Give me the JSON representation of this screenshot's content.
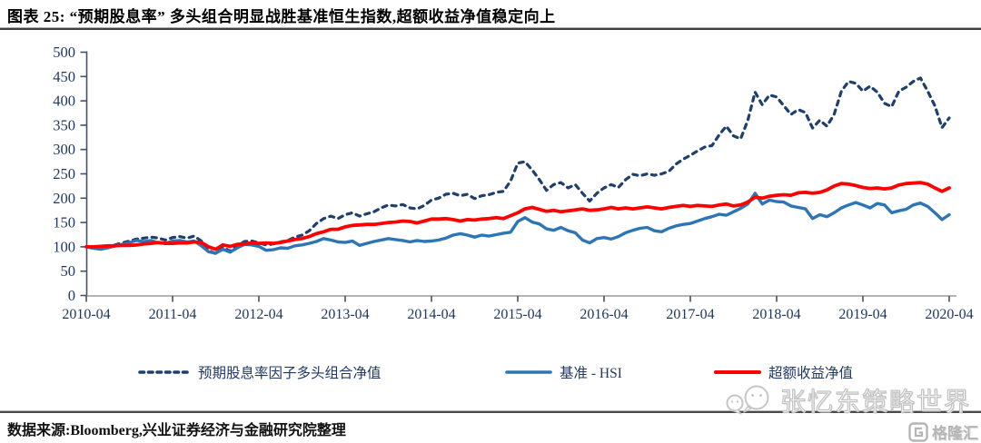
{
  "header": {
    "title": "图表 25: “预期股息率” 多头组合明显战胜基准恒生指数,超额收益净值稳定向上"
  },
  "footer": {
    "source": "数据来源:Bloomberg,兴业证券经济与金融研究院整理"
  },
  "watermark": {
    "text": "张忆东策略世界",
    "logo_text": "格隆汇"
  },
  "colors": {
    "long_portfolio": "#1f3f6e",
    "benchmark_hsi": "#2e75b6",
    "excess_return": "#ff0000",
    "axis_label": "#1f3864",
    "x_axis_line": "#9b9b9b",
    "y_axis_line": "#44516b"
  },
  "chart_data": {
    "type": "line",
    "title": "",
    "xlabel": "",
    "ylabel": "",
    "ylim": [
      0,
      500
    ],
    "y_ticks": [
      0,
      50,
      100,
      150,
      200,
      250,
      300,
      350,
      400,
      450,
      500
    ],
    "x_tick_labels": [
      "2010-04",
      "2011-04",
      "2012-04",
      "2013-04",
      "2014-04",
      "2015-04",
      "2016-04",
      "2017-04",
      "2018-04",
      "2019-04",
      "2020-04"
    ],
    "x_interval": "monthly",
    "x_range": [
      "2010-04",
      "2020-04"
    ],
    "grid": false,
    "legend_position": "bottom",
    "series": [
      {
        "name": "预期股息率因子多头组合净值",
        "style": "dashed",
        "color": "#1f3f6e",
        "width": 3.2,
        "values": [
          100,
          100,
          99,
          101,
          104,
          108,
          112,
          116,
          118,
          120,
          118,
          114,
          119,
          121,
          118,
          122,
          112,
          93,
          86,
          99,
          91,
          103,
          111,
          112,
          108,
          104,
          106,
          110,
          113,
          120,
          124,
          133,
          148,
          158,
          163,
          158,
          166,
          170,
          163,
          168,
          172,
          180,
          186,
          184,
          187,
          180,
          178,
          185,
          196,
          200,
          208,
          210,
          205,
          208,
          199,
          205,
          207,
          212,
          214,
          235,
          272,
          275,
          258,
          238,
          216,
          228,
          232,
          221,
          228,
          210,
          194,
          210,
          221,
          228,
          222,
          238,
          249,
          246,
          250,
          247,
          250,
          255,
          270,
          280,
          288,
          297,
          305,
          308,
          330,
          348,
          328,
          322,
          360,
          418,
          392,
          412,
          408,
          390,
          372,
          382,
          376,
          344,
          360,
          348,
          372,
          420,
          440,
          436,
          420,
          430,
          418,
          395,
          388,
          420,
          428,
          440,
          447,
          420,
          390,
          345,
          365
        ]
      },
      {
        "name": "基准 - HSI",
        "style": "solid",
        "color": "#2e75b6",
        "width": 3.4,
        "values": [
          100,
          97,
          95,
          98,
          102,
          105,
          109,
          113,
          111,
          113,
          108,
          107,
          112,
          113,
          110,
          112,
          102,
          90,
          87,
          95,
          89,
          98,
          105,
          104,
          101,
          93,
          94,
          98,
          97,
          102,
          104,
          107,
          111,
          117,
          114,
          110,
          109,
          112,
          103,
          107,
          111,
          114,
          117,
          115,
          113,
          110,
          113,
          111,
          112,
          114,
          118,
          124,
          127,
          124,
          120,
          124,
          122,
          125,
          128,
          130,
          152,
          160,
          151,
          147,
          137,
          134,
          140,
          133,
          129,
          114,
          108,
          117,
          119,
          116,
          121,
          129,
          134,
          138,
          140,
          133,
          131,
          138,
          143,
          146,
          148,
          153,
          158,
          162,
          167,
          165,
          172,
          179,
          188,
          210,
          188,
          196,
          193,
          192,
          184,
          181,
          178,
          158,
          166,
          162,
          170,
          180,
          186,
          191,
          186,
          180,
          189,
          186,
          170,
          174,
          177,
          186,
          190,
          183,
          170,
          156,
          166
        ]
      },
      {
        "name": "超额收益净值",
        "style": "solid",
        "color": "#ff0000",
        "width": 3.8,
        "values": [
          100,
          100,
          101,
          102,
          102,
          103,
          103,
          104,
          106,
          107,
          109,
          107,
          107,
          108,
          108,
          110,
          109,
          100,
          95,
          104,
          101,
          105,
          106,
          108,
          107,
          108,
          107,
          109,
          112,
          115,
          117,
          121,
          127,
          131,
          136,
          136,
          141,
          144,
          145,
          146,
          146,
          148,
          150,
          151,
          153,
          152,
          149,
          153,
          157,
          157,
          158,
          156,
          153,
          156,
          155,
          157,
          158,
          160,
          158,
          164,
          170,
          178,
          181,
          177,
          173,
          175,
          172,
          174,
          176,
          178,
          175,
          176,
          178,
          181,
          178,
          180,
          178,
          180,
          182,
          180,
          178,
          181,
          183,
          185,
          183,
          185,
          184,
          183,
          186,
          188,
          184,
          186,
          192,
          202,
          200,
          204,
          206,
          207,
          206,
          211,
          212,
          210,
          212,
          217,
          225,
          230,
          229,
          226,
          222,
          220,
          221,
          219,
          221,
          227,
          230,
          231,
          232,
          229,
          221,
          214,
          221
        ]
      }
    ]
  }
}
